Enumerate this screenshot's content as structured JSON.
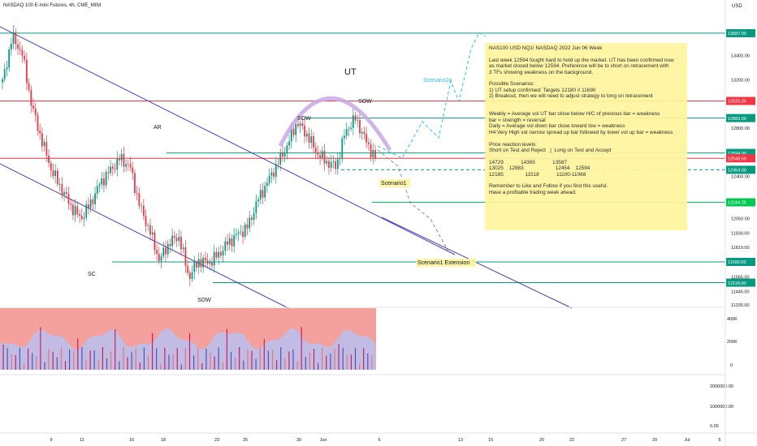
{
  "header": {
    "symbol_title": "NASDAQ 100 E-mini Futures, 4h, CME_MINI",
    "currency": "USD"
  },
  "note": {
    "lines": [
      "NAS100 USD NQ1! NASDAQ 2022 Jun 06 Week",
      "",
      "Last week 12594 fought hard to hold up the market. UT has been confirmed now",
      "as market closed below 12594. Preference will be to short on retracement with",
      "3 TFs showing weakness on the background.",
      "",
      "Possible Scenarios:",
      "1) UT setup confirmed: Targets 12180 // 11690",
      "2) Breakout, then we will need to adjust strategy to long on retracement",
      "",
      "",
      "Weekly = Average vol UT bar close below H/C of previous bar = weakness",
      "bar = strength = reversal",
      "Daily = Average vol down bar close toward low = weakness",
      "H4:Very High vol narrow spread up bar followed by lower vol up bar = weakness",
      "",
      "Price reaction levels:",
      "Short on Test and Reject   |  Long on Test and Accept",
      "",
      "14729            14365            13587",
      "13025    12883                      12454    12594",
      "12185               11518            11100-11068",
      "",
      "Remember to Like and Follow if you find this useful.",
      "Have a profitable trading week ahead."
    ]
  },
  "chart_data": {
    "type": "candlestick",
    "title": "NASDAQ 100 E-mini Futures, 4h, CME_MINI",
    "ylim": [
      11300,
      13700
    ],
    "price_ticks": [
      "13400.00",
      "13200.00",
      "12800.00",
      "12400.00",
      "12050.00",
      "11930.00",
      "11810.00",
      "11565.00",
      "11445.00",
      "11335.00"
    ],
    "price_levels": [
      {
        "label": "13587.00",
        "value": 13587,
        "color": "#089981"
      },
      {
        "label": "13025.00",
        "value": 13025,
        "color": "#f23645"
      },
      {
        "label": "12883.00",
        "value": 12883,
        "color": "#089981"
      },
      {
        "label": "12594.00",
        "value": 12594,
        "color": "#089981"
      },
      {
        "label": "12549.50",
        "value": 12549.5,
        "color": "#f23645"
      },
      {
        "label": "12454.00",
        "value": 12454,
        "color": "#089981"
      },
      {
        "label": "12184.25",
        "value": 12184.25,
        "color": "#00c853"
      },
      {
        "label": "11690.00",
        "value": 11690,
        "color": "#089981"
      },
      {
        "label": "11518.00",
        "value": 11518,
        "color": "#089981"
      }
    ],
    "x_ticks": [
      "9",
      "11",
      "16",
      "18",
      "23",
      "25",
      "30",
      "Jun",
      "6",
      "13",
      "15",
      "20",
      "22",
      "27",
      "29",
      "Jul",
      "5"
    ],
    "annotations": [
      "UT",
      "SOW",
      "SOW",
      "AR",
      "SC",
      "SOW",
      "Scenario2a",
      "Scenario1",
      "Scenario1 Extension"
    ],
    "volume_ticks": [
      "400K",
      "200K",
      "0"
    ],
    "indicator_ticks": [
      "2000000.00",
      "1000000.00",
      "0.00"
    ],
    "close_path": [
      13180,
      13560,
      13420,
      12980,
      12700,
      12450,
      12300,
      12150,
      12050,
      12180,
      12350,
      12450,
      12550,
      12480,
      12150,
      11950,
      11700,
      11850,
      11900,
      11560,
      11700,
      11680,
      11750,
      11850,
      11920,
      11980,
      12200,
      12350,
      12500,
      12650,
      12850,
      12750,
      12600,
      12520,
      12480,
      12780,
      12880,
      12700,
      12549
    ]
  },
  "colors": {
    "up": "#089981",
    "down": "#f23645",
    "channel": "#4a42b8",
    "ut_arc": "#c8a8e6",
    "scenario": "#26c6da"
  }
}
